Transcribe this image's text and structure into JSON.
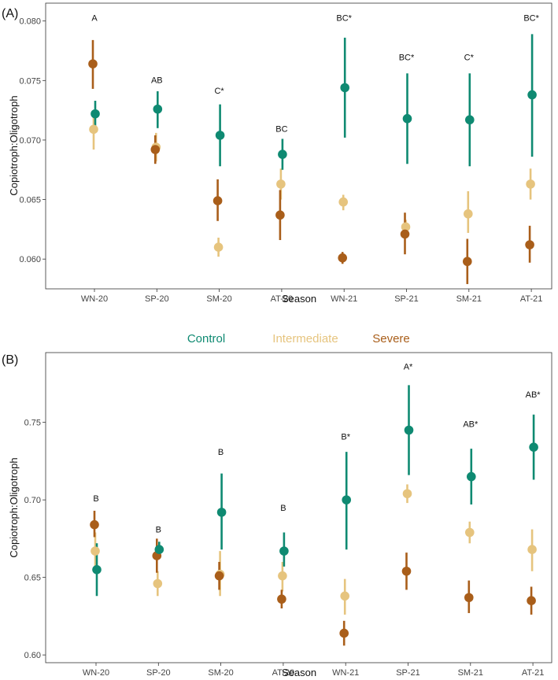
{
  "legend": {
    "entries": [
      {
        "label": "Control",
        "color": "#0f8a72"
      },
      {
        "label": "Intermediate",
        "color": "#e6c47e"
      },
      {
        "label": "Severe",
        "color": "#a95e1a"
      }
    ]
  },
  "chart_data": [
    {
      "type": "scatter",
      "panel_label": "(A)",
      "xlabel": "Season",
      "ylabel": "Copiotroph:Oligotroph",
      "categories": [
        "WN-20",
        "SP-20",
        "SM-20",
        "AT-20",
        "WN-21",
        "SP-21",
        "SM-21",
        "AT-21"
      ],
      "ylim": [
        0.0575,
        0.0815
      ],
      "yticks": [
        0.06,
        0.065,
        0.07,
        0.075,
        0.08
      ],
      "ytick_labels": [
        "0.060",
        "0.065",
        "0.070",
        "0.075",
        "0.080"
      ],
      "grid": false,
      "annotations": [
        "A",
        "AB",
        "C*",
        "BC",
        "BC*",
        "BC*",
        "C*",
        "BC*"
      ],
      "annotation_y": [
        0.08,
        0.0748,
        0.0739,
        0.0707,
        0.08,
        0.0767,
        0.0767,
        0.08
      ],
      "series": [
        {
          "name": "Control",
          "color": "#0f8a72",
          "values": [
            0.0722,
            0.0726,
            0.0704,
            0.0688,
            0.0744,
            0.0718,
            0.0717,
            0.0738
          ],
          "lower": [
            0.071,
            0.071,
            0.0678,
            0.0675,
            0.0702,
            0.068,
            0.0678,
            0.0686
          ],
          "upper": [
            0.0733,
            0.0741,
            0.073,
            0.0701,
            0.0786,
            0.0756,
            0.0756,
            0.0789
          ]
        },
        {
          "name": "Intermediate",
          "color": "#e6c47e",
          "values": [
            0.0709,
            0.0694,
            0.061,
            0.0663,
            0.0648,
            0.0627,
            0.0638,
            0.0663
          ],
          "lower": [
            0.0692,
            0.0682,
            0.0602,
            0.065,
            0.0641,
            0.062,
            0.0622,
            0.065
          ],
          "upper": [
            0.0725,
            0.0706,
            0.0618,
            0.0676,
            0.0654,
            0.0633,
            0.0657,
            0.0676
          ]
        },
        {
          "name": "Severe",
          "color": "#a95e1a",
          "values": [
            0.0764,
            0.0692,
            0.0649,
            0.0637,
            0.0601,
            0.0621,
            0.0598,
            0.0612
          ],
          "lower": [
            0.0743,
            0.068,
            0.0632,
            0.0616,
            0.0596,
            0.0604,
            0.0579,
            0.0597
          ],
          "upper": [
            0.0784,
            0.0704,
            0.0667,
            0.0658,
            0.0606,
            0.0639,
            0.0617,
            0.0628
          ]
        }
      ]
    },
    {
      "type": "scatter",
      "panel_label": "(B)",
      "xlabel": "Season",
      "ylabel": "Copiotroph:Oligotroph",
      "categories": [
        "WN-20",
        "SP-20",
        "SM-20",
        "AT-20",
        "WN-21",
        "SP-21",
        "SM-21",
        "AT-21"
      ],
      "ylim": [
        0.595,
        0.795
      ],
      "yticks": [
        0.6,
        0.65,
        0.7,
        0.75
      ],
      "ytick_labels": [
        "0.60",
        "0.65",
        "0.70",
        "0.75"
      ],
      "grid": false,
      "annotations": [
        "B",
        "B",
        "B",
        "B",
        "B*",
        "A*",
        "AB*",
        "AB*"
      ],
      "annotation_y": [
        0.699,
        0.679,
        0.729,
        0.693,
        0.739,
        0.784,
        0.747,
        0.766
      ],
      "series": [
        {
          "name": "Control",
          "color": "#0f8a72",
          "values": [
            0.655,
            0.668,
            0.692,
            0.667,
            0.7,
            0.745,
            0.715,
            0.734
          ],
          "lower": [
            0.638,
            0.663,
            0.668,
            0.657,
            0.668,
            0.716,
            0.697,
            0.713
          ],
          "upper": [
            0.672,
            0.673,
            0.717,
            0.679,
            0.731,
            0.774,
            0.733,
            0.755
          ]
        },
        {
          "name": "Intermediate",
          "color": "#e6c47e",
          "values": [
            0.667,
            0.646,
            0.652,
            0.651,
            0.638,
            0.704,
            0.679,
            0.668
          ],
          "lower": [
            0.655,
            0.638,
            0.638,
            0.641,
            0.626,
            0.698,
            0.672,
            0.654
          ],
          "upper": [
            0.679,
            0.654,
            0.667,
            0.66,
            0.649,
            0.71,
            0.686,
            0.681
          ]
        },
        {
          "name": "Severe",
          "color": "#a95e1a",
          "values": [
            0.684,
            0.664,
            0.651,
            0.636,
            0.614,
            0.654,
            0.637,
            0.635
          ],
          "lower": [
            0.676,
            0.653,
            0.642,
            0.63,
            0.606,
            0.642,
            0.627,
            0.626
          ],
          "upper": [
            0.693,
            0.675,
            0.66,
            0.642,
            0.622,
            0.666,
            0.648,
            0.644
          ]
        }
      ]
    }
  ]
}
